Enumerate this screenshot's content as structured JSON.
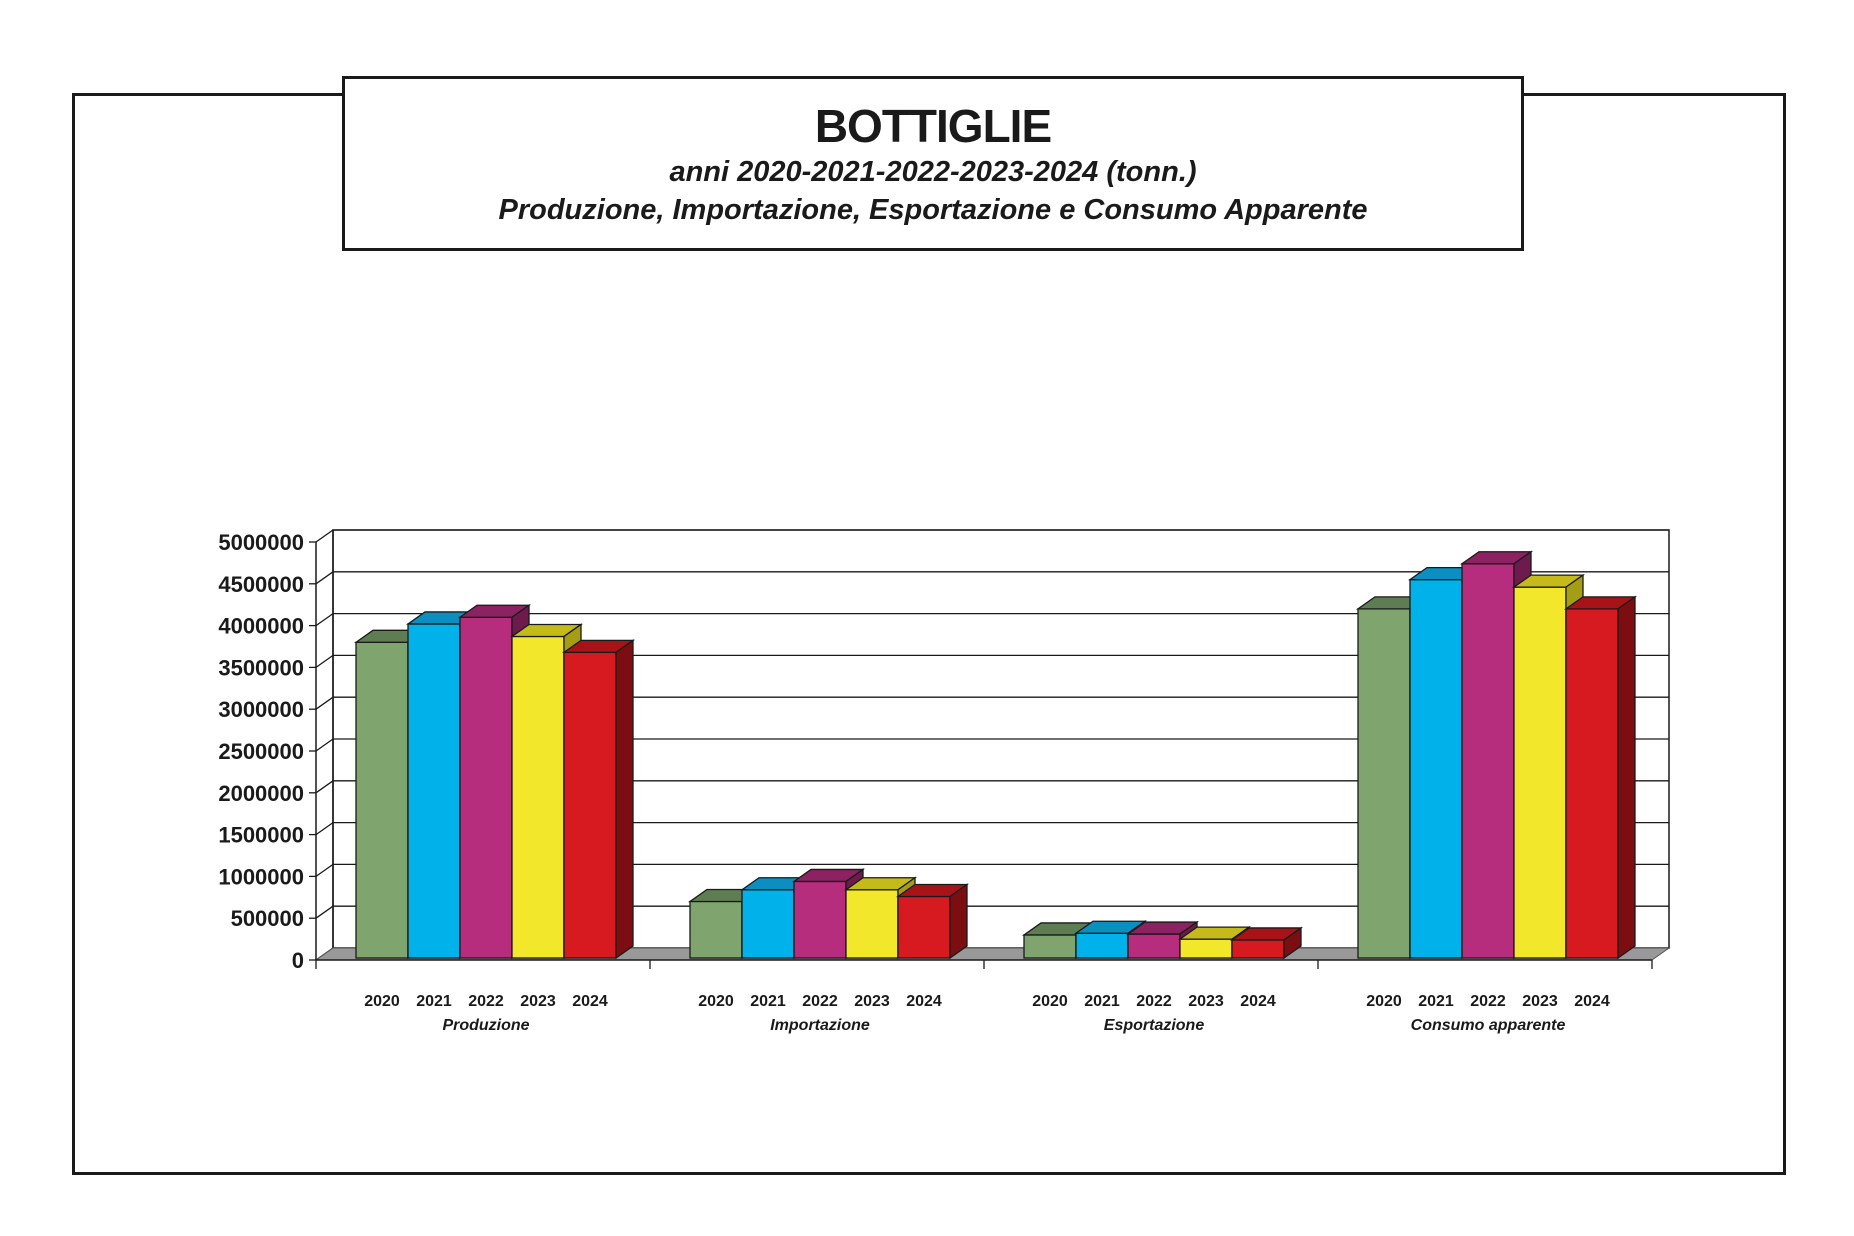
{
  "title": "BOTTIGLIE",
  "subtitle_line1": "anni 2020-2021-2022-2023-2024 (tonn.)",
  "subtitle_line2": "Produzione, Importazione, Esportazione e Consumo Apparente",
  "chart_data": {
    "type": "bar",
    "title": "BOTTIGLIE",
    "groups": [
      "Produzione",
      "Importazione",
      "Esportazione",
      "Consumo apparente"
    ],
    "categories": [
      "2020",
      "2021",
      "2022",
      "2023",
      "2024"
    ],
    "series": [
      {
        "group": "Produzione",
        "values": [
          3800000,
          4020000,
          4100000,
          3870000,
          3680000
        ]
      },
      {
        "group": "Importazione",
        "values": [
          700000,
          840000,
          940000,
          840000,
          760000
        ]
      },
      {
        "group": "Esportazione",
        "values": [
          300000,
          320000,
          310000,
          250000,
          240000
        ]
      },
      {
        "group": "Consumo apparente",
        "values": [
          4200000,
          4550000,
          4740000,
          4460000,
          4200000
        ]
      }
    ],
    "ylim": [
      0,
      5000000
    ],
    "yticks": [
      "0",
      "500000",
      "1000000",
      "1500000",
      "2000000",
      "2500000",
      "3000000",
      "3500000",
      "4000000",
      "4500000",
      "5000000"
    ],
    "grid": true,
    "style": "3d",
    "colors": {
      "2020": {
        "front": "#7fa46e",
        "top": "#5f7d52",
        "side": "#4e6a43"
      },
      "2021": {
        "front": "#00b1ea",
        "top": "#0a8fc0",
        "side": "#0878a3"
      },
      "2022": {
        "front": "#b72d7d",
        "top": "#8c2262",
        "side": "#6e1a4c"
      },
      "2023": {
        "front": "#f2e72a",
        "top": "#c4ba1a",
        "side": "#a59d14"
      },
      "2024": {
        "front": "#d71920",
        "top": "#a81318",
        "side": "#7c0e12"
      },
      "floor": "#999999",
      "grid": "#1a1a1a"
    }
  }
}
